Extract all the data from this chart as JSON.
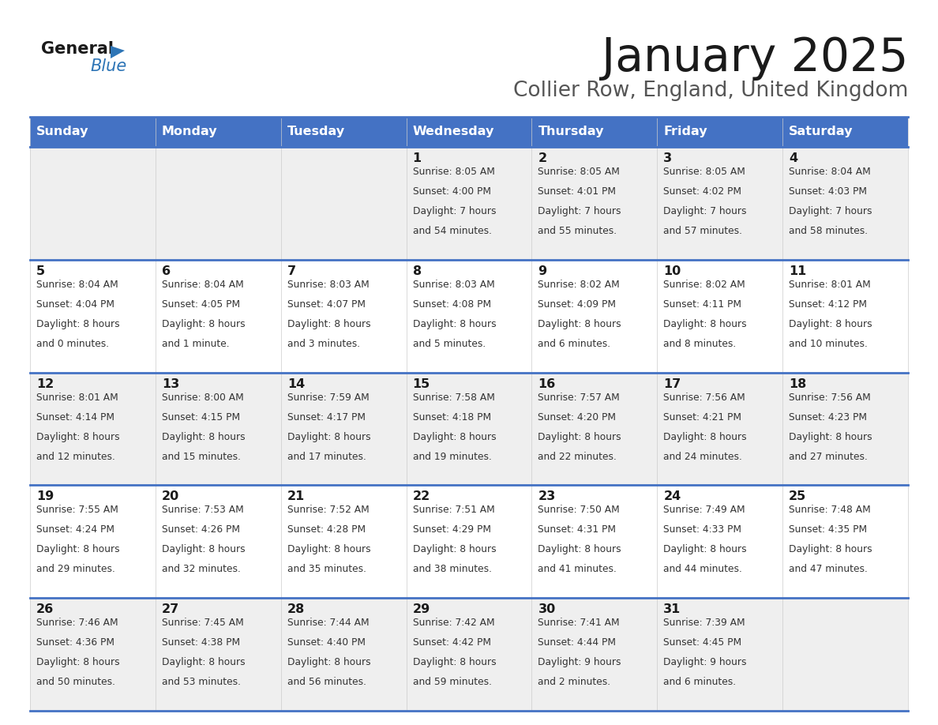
{
  "title": "January 2025",
  "subtitle": "Collier Row, England, United Kingdom",
  "days_of_week": [
    "Sunday",
    "Monday",
    "Tuesday",
    "Wednesday",
    "Thursday",
    "Friday",
    "Saturday"
  ],
  "header_bg": "#4472C4",
  "header_text": "#FFFFFF",
  "odd_row_bg": "#EFEFEF",
  "even_row_bg": "#FFFFFF",
  "border_color": "#4472C4",
  "title_color": "#1a1a1a",
  "subtitle_color": "#555555",
  "day_num_color": "#1a1a1a",
  "cell_text_color": "#333333",
  "calendar": [
    [
      {
        "day": null,
        "sunrise": null,
        "sunset": null,
        "daylight": null
      },
      {
        "day": null,
        "sunrise": null,
        "sunset": null,
        "daylight": null
      },
      {
        "day": null,
        "sunrise": null,
        "sunset": null,
        "daylight": null
      },
      {
        "day": 1,
        "sunrise": "8:05 AM",
        "sunset": "4:00 PM",
        "daylight": "7 hours",
        "daylight2": "and 54 minutes."
      },
      {
        "day": 2,
        "sunrise": "8:05 AM",
        "sunset": "4:01 PM",
        "daylight": "7 hours",
        "daylight2": "and 55 minutes."
      },
      {
        "day": 3,
        "sunrise": "8:05 AM",
        "sunset": "4:02 PM",
        "daylight": "7 hours",
        "daylight2": "and 57 minutes."
      },
      {
        "day": 4,
        "sunrise": "8:04 AM",
        "sunset": "4:03 PM",
        "daylight": "7 hours",
        "daylight2": "and 58 minutes."
      }
    ],
    [
      {
        "day": 5,
        "sunrise": "8:04 AM",
        "sunset": "4:04 PM",
        "daylight": "8 hours",
        "daylight2": "and 0 minutes."
      },
      {
        "day": 6,
        "sunrise": "8:04 AM",
        "sunset": "4:05 PM",
        "daylight": "8 hours",
        "daylight2": "and 1 minute."
      },
      {
        "day": 7,
        "sunrise": "8:03 AM",
        "sunset": "4:07 PM",
        "daylight": "8 hours",
        "daylight2": "and 3 minutes."
      },
      {
        "day": 8,
        "sunrise": "8:03 AM",
        "sunset": "4:08 PM",
        "daylight": "8 hours",
        "daylight2": "and 5 minutes."
      },
      {
        "day": 9,
        "sunrise": "8:02 AM",
        "sunset": "4:09 PM",
        "daylight": "8 hours",
        "daylight2": "and 6 minutes."
      },
      {
        "day": 10,
        "sunrise": "8:02 AM",
        "sunset": "4:11 PM",
        "daylight": "8 hours",
        "daylight2": "and 8 minutes."
      },
      {
        "day": 11,
        "sunrise": "8:01 AM",
        "sunset": "4:12 PM",
        "daylight": "8 hours",
        "daylight2": "and 10 minutes."
      }
    ],
    [
      {
        "day": 12,
        "sunrise": "8:01 AM",
        "sunset": "4:14 PM",
        "daylight": "8 hours",
        "daylight2": "and 12 minutes."
      },
      {
        "day": 13,
        "sunrise": "8:00 AM",
        "sunset": "4:15 PM",
        "daylight": "8 hours",
        "daylight2": "and 15 minutes."
      },
      {
        "day": 14,
        "sunrise": "7:59 AM",
        "sunset": "4:17 PM",
        "daylight": "8 hours",
        "daylight2": "and 17 minutes."
      },
      {
        "day": 15,
        "sunrise": "7:58 AM",
        "sunset": "4:18 PM",
        "daylight": "8 hours",
        "daylight2": "and 19 minutes."
      },
      {
        "day": 16,
        "sunrise": "7:57 AM",
        "sunset": "4:20 PM",
        "daylight": "8 hours",
        "daylight2": "and 22 minutes."
      },
      {
        "day": 17,
        "sunrise": "7:56 AM",
        "sunset": "4:21 PM",
        "daylight": "8 hours",
        "daylight2": "and 24 minutes."
      },
      {
        "day": 18,
        "sunrise": "7:56 AM",
        "sunset": "4:23 PM",
        "daylight": "8 hours",
        "daylight2": "and 27 minutes."
      }
    ],
    [
      {
        "day": 19,
        "sunrise": "7:55 AM",
        "sunset": "4:24 PM",
        "daylight": "8 hours",
        "daylight2": "and 29 minutes."
      },
      {
        "day": 20,
        "sunrise": "7:53 AM",
        "sunset": "4:26 PM",
        "daylight": "8 hours",
        "daylight2": "and 32 minutes."
      },
      {
        "day": 21,
        "sunrise": "7:52 AM",
        "sunset": "4:28 PM",
        "daylight": "8 hours",
        "daylight2": "and 35 minutes."
      },
      {
        "day": 22,
        "sunrise": "7:51 AM",
        "sunset": "4:29 PM",
        "daylight": "8 hours",
        "daylight2": "and 38 minutes."
      },
      {
        "day": 23,
        "sunrise": "7:50 AM",
        "sunset": "4:31 PM",
        "daylight": "8 hours",
        "daylight2": "and 41 minutes."
      },
      {
        "day": 24,
        "sunrise": "7:49 AM",
        "sunset": "4:33 PM",
        "daylight": "8 hours",
        "daylight2": "and 44 minutes."
      },
      {
        "day": 25,
        "sunrise": "7:48 AM",
        "sunset": "4:35 PM",
        "daylight": "8 hours",
        "daylight2": "and 47 minutes."
      }
    ],
    [
      {
        "day": 26,
        "sunrise": "7:46 AM",
        "sunset": "4:36 PM",
        "daylight": "8 hours",
        "daylight2": "and 50 minutes."
      },
      {
        "day": 27,
        "sunrise": "7:45 AM",
        "sunset": "4:38 PM",
        "daylight": "8 hours",
        "daylight2": "and 53 minutes."
      },
      {
        "day": 28,
        "sunrise": "7:44 AM",
        "sunset": "4:40 PM",
        "daylight": "8 hours",
        "daylight2": "and 56 minutes."
      },
      {
        "day": 29,
        "sunrise": "7:42 AM",
        "sunset": "4:42 PM",
        "daylight": "8 hours",
        "daylight2": "and 59 minutes."
      },
      {
        "day": 30,
        "sunrise": "7:41 AM",
        "sunset": "4:44 PM",
        "daylight": "9 hours",
        "daylight2": "and 2 minutes."
      },
      {
        "day": 31,
        "sunrise": "7:39 AM",
        "sunset": "4:45 PM",
        "daylight": "9 hours",
        "daylight2": "and 6 minutes."
      },
      {
        "day": null,
        "sunrise": null,
        "sunset": null,
        "daylight": null,
        "daylight2": null
      }
    ]
  ]
}
